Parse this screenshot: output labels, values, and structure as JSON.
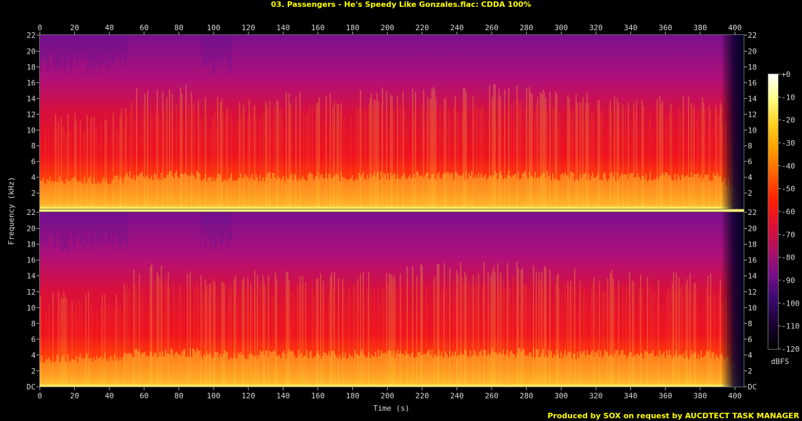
{
  "chart_data": {
    "type": "heatmap",
    "title": "03. Passengers - He's Speedy Like Gonzales.flac: CDDA 100%",
    "xlabel": "Time (s)",
    "ylabel": "Frequency (kHz)",
    "footer": "Produced by SOX on request by AUCDTECT TASK MANAGER",
    "xlim": [
      0,
      405
    ],
    "ylim": [
      0,
      22.05
    ],
    "x_ticks": [
      "0",
      "20",
      "40",
      "60",
      "80",
      "100",
      "120",
      "140",
      "160",
      "180",
      "200",
      "220",
      "240",
      "260",
      "280",
      "300",
      "320",
      "340",
      "360",
      "380",
      "400"
    ],
    "y_ticks_top": [
      "22",
      "20",
      "18",
      "16",
      "14",
      "12",
      "10",
      "8",
      "6",
      "4",
      "2"
    ],
    "y_ticks_bottom": [
      "22",
      "20",
      "18",
      "16",
      "14",
      "12",
      "10",
      "8",
      "6",
      "4",
      "2",
      "DC"
    ],
    "channels": 2,
    "colorbar": {
      "label": "dBFS",
      "range": [
        -120,
        0
      ],
      "ticks": [
        "+0",
        "-10",
        "-20",
        "-30",
        "-40",
        "-50",
        "-60",
        "-70",
        "-80",
        "-90",
        "-100",
        "-110",
        "-120"
      ],
      "colors": [
        "#000000",
        "#1a0033",
        "#3a0a6e",
        "#7a0f8a",
        "#b01060",
        "#e01030",
        "#ff2000",
        "#ff6000",
        "#ff9f00",
        "#ffd020",
        "#ffff80",
        "#ffffff"
      ]
    },
    "music_end_s": 398,
    "energy_profile": [
      {
        "t": 0,
        "level": 0.55
      },
      {
        "t": 48,
        "level": 0.6
      },
      {
        "t": 50,
        "level": 0.75
      },
      {
        "t": 90,
        "level": 0.78
      },
      {
        "t": 92,
        "level": 0.68
      },
      {
        "t": 140,
        "level": 0.72
      },
      {
        "t": 180,
        "level": 0.7
      },
      {
        "t": 182,
        "level": 0.74
      },
      {
        "t": 280,
        "level": 0.78
      },
      {
        "t": 300,
        "level": 0.72
      },
      {
        "t": 390,
        "level": 0.7
      },
      {
        "t": 398,
        "level": 0.4
      },
      {
        "t": 405,
        "level": 0.0
      }
    ]
  }
}
